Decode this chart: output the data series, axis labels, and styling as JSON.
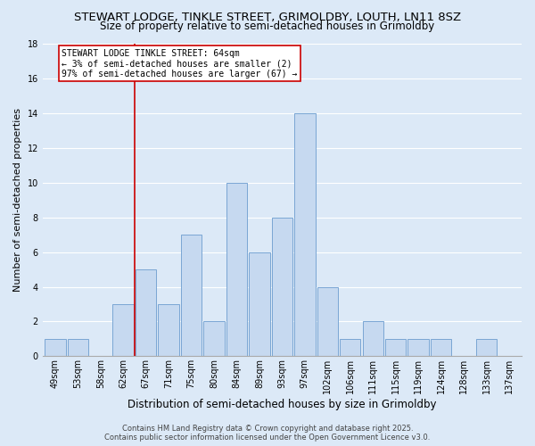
{
  "title": "STEWART LODGE, TINKLE STREET, GRIMOLDBY, LOUTH, LN11 8SZ",
  "subtitle": "Size of property relative to semi-detached houses in Grimoldby",
  "xlabel": "Distribution of semi-detached houses by size in Grimoldby",
  "ylabel": "Number of semi-detached properties",
  "bins": [
    "49sqm",
    "53sqm",
    "58sqm",
    "62sqm",
    "67sqm",
    "71sqm",
    "75sqm",
    "80sqm",
    "84sqm",
    "89sqm",
    "93sqm",
    "97sqm",
    "102sqm",
    "106sqm",
    "111sqm",
    "115sqm",
    "119sqm",
    "124sqm",
    "128sqm",
    "133sqm",
    "137sqm"
  ],
  "counts": [
    1,
    1,
    0,
    3,
    5,
    3,
    7,
    2,
    10,
    6,
    8,
    14,
    4,
    1,
    2,
    1,
    1,
    1,
    0,
    1,
    0
  ],
  "bar_color": "#c6d9f0",
  "bar_edge_color": "#7aa6d4",
  "vline_x_index": 3.5,
  "vline_color": "#cc0000",
  "annotation_title": "STEWART LODGE TINKLE STREET: 64sqm",
  "annotation_line1": "← 3% of semi-detached houses are smaller (2)",
  "annotation_line2": "97% of semi-detached houses are larger (67) →",
  "annotation_box_color": "#ffffff",
  "annotation_box_edge": "#cc0000",
  "ylim": [
    0,
    18
  ],
  "yticks": [
    0,
    2,
    4,
    6,
    8,
    10,
    12,
    14,
    16,
    18
  ],
  "background_color": "#dce9f7",
  "footer1": "Contains HM Land Registry data © Crown copyright and database right 2025.",
  "footer2": "Contains public sector information licensed under the Open Government Licence v3.0.",
  "title_fontsize": 9.5,
  "subtitle_fontsize": 8.5,
  "xlabel_fontsize": 8.5,
  "ylabel_fontsize": 8,
  "tick_fontsize": 7,
  "annotation_fontsize": 7,
  "footer_fontsize": 6
}
